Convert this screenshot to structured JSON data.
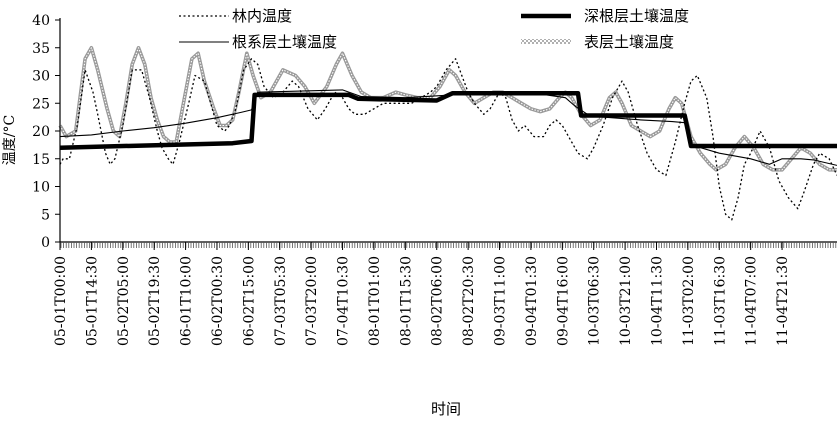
{
  "chart_data": {
    "type": "line",
    "title": "",
    "xlabel": "时间",
    "ylabel": "温度/°C",
    "ylim": [
      0,
      40
    ],
    "yticks": [
      0,
      5,
      10,
      15,
      20,
      25,
      30,
      35,
      40
    ],
    "x_range": [
      "05-01T00:00",
      "11-04T21:30"
    ],
    "x_tick_labels": [
      "05-01T00:00",
      "05-01T14:30",
      "05-02T05:00",
      "05-02T19:30",
      "06-01T10:00",
      "06-02T00:30",
      "06-02T15:00",
      "07-03T05:30",
      "07-03T20:00",
      "07-04T10:30",
      "08-01T01:00",
      "08-01T15:30",
      "08-02T06:00",
      "08-02T20:30",
      "09-03T11:00",
      "09-04T01:30",
      "09-04T16:00",
      "10-03T06:30",
      "10-03T21:00",
      "10-04T11:30",
      "11-03T02:00",
      "11-03T16:30",
      "11-04T07:00",
      "11-04T21:30"
    ],
    "legend_position": "top",
    "grid": false,
    "colors": {
      "axis": "#000000",
      "forest": "#000000",
      "deep": "#000000",
      "root": "#000000",
      "surface": "#9a9a9a"
    },
    "series": [
      {
        "name": "林内温度",
        "style": "dotted",
        "points": [
          [
            0,
            14
          ],
          [
            0.1,
            15
          ],
          [
            0.3,
            15
          ],
          [
            0.55,
            21
          ],
          [
            0.8,
            31
          ],
          [
            1.05,
            27
          ],
          [
            1.2,
            23
          ],
          [
            1.45,
            16
          ],
          [
            1.6,
            14
          ],
          [
            1.75,
            15
          ],
          [
            2.0,
            21
          ],
          [
            2.3,
            31
          ],
          [
            2.6,
            31
          ],
          [
            2.85,
            26
          ],
          [
            3.1,
            20
          ],
          [
            3.25,
            17
          ],
          [
            3.45,
            15
          ],
          [
            3.6,
            14
          ],
          [
            3.8,
            18
          ],
          [
            4.1,
            25
          ],
          [
            4.3,
            30
          ],
          [
            4.6,
            29
          ],
          [
            4.8,
            25
          ],
          [
            5.0,
            21
          ],
          [
            5.25,
            20
          ],
          [
            5.4,
            21
          ],
          [
            5.6,
            24
          ],
          [
            5.85,
            31
          ],
          [
            6.1,
            33
          ],
          [
            6.3,
            32
          ],
          [
            6.5,
            28
          ],
          [
            6.8,
            26
          ],
          [
            7.1,
            27
          ],
          [
            7.4,
            29
          ],
          [
            7.6,
            28
          ],
          [
            7.9,
            24
          ],
          [
            8.2,
            22
          ],
          [
            8.45,
            24
          ],
          [
            8.75,
            27
          ],
          [
            9.0,
            26
          ],
          [
            9.2,
            24
          ],
          [
            9.4,
            23
          ],
          [
            9.7,
            23
          ],
          [
            10.0,
            24
          ],
          [
            10.3,
            25
          ],
          [
            10.6,
            25
          ],
          [
            10.9,
            25
          ],
          [
            11.2,
            25
          ],
          [
            11.5,
            26
          ],
          [
            11.8,
            27
          ],
          [
            12.0,
            28
          ],
          [
            12.3,
            31
          ],
          [
            12.6,
            33
          ],
          [
            12.8,
            30
          ],
          [
            13.0,
            27
          ],
          [
            13.2,
            25
          ],
          [
            13.5,
            23
          ],
          [
            13.7,
            24
          ],
          [
            14.0,
            27
          ],
          [
            14.2,
            26
          ],
          [
            14.4,
            22
          ],
          [
            14.6,
            20
          ],
          [
            14.8,
            21
          ],
          [
            15.1,
            19
          ],
          [
            15.4,
            19
          ],
          [
            15.6,
            21
          ],
          [
            15.8,
            22
          ],
          [
            16.0,
            21
          ],
          [
            16.2,
            19
          ],
          [
            16.5,
            16
          ],
          [
            16.8,
            15
          ],
          [
            17.0,
            17
          ],
          [
            17.3,
            21
          ],
          [
            17.6,
            26
          ],
          [
            17.9,
            29
          ],
          [
            18.1,
            27
          ],
          [
            18.4,
            21
          ],
          [
            18.7,
            16
          ],
          [
            19.0,
            13
          ],
          [
            19.3,
            12
          ],
          [
            19.6,
            18
          ],
          [
            19.9,
            25
          ],
          [
            20.1,
            29
          ],
          [
            20.3,
            30
          ],
          [
            20.6,
            26
          ],
          [
            20.8,
            19
          ],
          [
            21.0,
            10
          ],
          [
            21.2,
            5
          ],
          [
            21.4,
            4
          ],
          [
            21.6,
            8
          ],
          [
            21.8,
            14
          ],
          [
            22.0,
            16
          ],
          [
            22.3,
            20
          ],
          [
            22.6,
            17
          ],
          [
            22.9,
            11
          ],
          [
            23.2,
            8
          ],
          [
            23.5,
            6
          ],
          [
            23.7,
            9
          ],
          [
            24.0,
            14
          ],
          [
            24.2,
            16
          ],
          [
            24.5,
            15
          ],
          [
            24.75,
            12
          ]
        ]
      },
      {
        "name": "深根层土壤温度",
        "style": "thick",
        "points": [
          [
            0,
            17
          ],
          [
            5.5,
            17.8
          ],
          [
            6.1,
            18.2
          ],
          [
            6.2,
            26.5
          ],
          [
            9.2,
            26.5
          ],
          [
            9.5,
            25.8
          ],
          [
            12.0,
            25.5
          ],
          [
            12.5,
            26.8
          ],
          [
            16.5,
            26.8
          ],
          [
            16.6,
            22.8
          ],
          [
            19.9,
            22.8
          ],
          [
            20.1,
            17.3
          ],
          [
            24.75,
            17.3
          ]
        ]
      },
      {
        "name": "根系层土壤温度",
        "style": "thin",
        "points": [
          [
            0,
            19
          ],
          [
            1.0,
            19.3
          ],
          [
            2.0,
            20
          ],
          [
            3.0,
            20.6
          ],
          [
            4.0,
            21.4
          ],
          [
            5.0,
            22.4
          ],
          [
            5.8,
            23.4
          ],
          [
            6.1,
            23.8
          ],
          [
            6.3,
            27
          ],
          [
            9.0,
            27.4
          ],
          [
            9.6,
            26.2
          ],
          [
            11.0,
            26
          ],
          [
            12.5,
            26.5
          ],
          [
            14.0,
            26.5
          ],
          [
            15.5,
            26.5
          ],
          [
            16.1,
            26
          ],
          [
            16.4,
            24.5
          ],
          [
            16.8,
            23
          ],
          [
            17.3,
            22.5
          ],
          [
            18.5,
            22
          ],
          [
            19.5,
            21.7
          ],
          [
            19.9,
            21.5
          ],
          [
            20.1,
            17.5
          ],
          [
            21.0,
            16
          ],
          [
            22.0,
            15
          ],
          [
            22.6,
            14
          ],
          [
            23.0,
            15
          ],
          [
            23.6,
            15
          ],
          [
            24.0,
            14.8
          ],
          [
            24.75,
            13.8
          ]
        ]
      },
      {
        "name": "表层土壤温度",
        "style": "hatched",
        "points": [
          [
            0,
            21
          ],
          [
            0.2,
            19
          ],
          [
            0.5,
            20
          ],
          [
            0.8,
            33
          ],
          [
            1.0,
            35
          ],
          [
            1.2,
            31
          ],
          [
            1.5,
            24
          ],
          [
            1.7,
            20
          ],
          [
            1.9,
            19
          ],
          [
            2.1,
            25
          ],
          [
            2.3,
            32
          ],
          [
            2.5,
            35
          ],
          [
            2.7,
            32
          ],
          [
            2.9,
            26
          ],
          [
            3.1,
            22
          ],
          [
            3.3,
            19
          ],
          [
            3.5,
            18
          ],
          [
            3.7,
            18
          ],
          [
            3.9,
            24
          ],
          [
            4.2,
            33
          ],
          [
            4.4,
            34
          ],
          [
            4.6,
            29
          ],
          [
            4.9,
            24
          ],
          [
            5.1,
            21
          ],
          [
            5.3,
            21
          ],
          [
            5.5,
            22
          ],
          [
            5.7,
            27
          ],
          [
            5.95,
            34
          ],
          [
            6.15,
            30
          ],
          [
            6.4,
            26
          ],
          [
            6.7,
            27
          ],
          [
            7.1,
            31
          ],
          [
            7.5,
            30
          ],
          [
            7.8,
            28
          ],
          [
            8.1,
            25
          ],
          [
            8.5,
            28
          ],
          [
            8.8,
            32
          ],
          [
            9.0,
            34
          ],
          [
            9.3,
            30
          ],
          [
            9.6,
            27
          ],
          [
            9.9,
            26
          ],
          [
            10.3,
            26
          ],
          [
            10.7,
            27
          ],
          [
            11.0,
            26.5
          ],
          [
            11.4,
            26
          ],
          [
            11.8,
            26
          ],
          [
            12.1,
            28
          ],
          [
            12.4,
            31
          ],
          [
            12.6,
            30
          ],
          [
            12.9,
            27
          ],
          [
            13.2,
            25
          ],
          [
            13.5,
            26
          ],
          [
            13.8,
            27
          ],
          [
            14.1,
            27
          ],
          [
            14.4,
            26
          ],
          [
            14.7,
            25
          ],
          [
            15.0,
            24
          ],
          [
            15.3,
            23.5
          ],
          [
            15.6,
            24
          ],
          [
            15.9,
            26
          ],
          [
            16.1,
            27
          ],
          [
            16.3,
            26
          ],
          [
            16.6,
            23
          ],
          [
            16.9,
            21
          ],
          [
            17.2,
            22
          ],
          [
            17.5,
            26
          ],
          [
            17.7,
            27
          ],
          [
            17.9,
            25
          ],
          [
            18.2,
            21
          ],
          [
            18.5,
            20
          ],
          [
            18.8,
            19
          ],
          [
            19.1,
            20
          ],
          [
            19.4,
            24
          ],
          [
            19.6,
            26
          ],
          [
            19.8,
            25
          ],
          [
            20.1,
            19
          ],
          [
            20.4,
            16
          ],
          [
            20.7,
            14
          ],
          [
            20.9,
            13
          ],
          [
            21.2,
            14
          ],
          [
            21.5,
            17
          ],
          [
            21.8,
            19
          ],
          [
            22.1,
            17
          ],
          [
            22.4,
            14
          ],
          [
            22.7,
            13
          ],
          [
            23.0,
            13
          ],
          [
            23.3,
            15
          ],
          [
            23.6,
            17
          ],
          [
            23.9,
            16
          ],
          [
            24.2,
            14
          ],
          [
            24.5,
            13
          ],
          [
            24.75,
            13
          ]
        ]
      }
    ]
  }
}
